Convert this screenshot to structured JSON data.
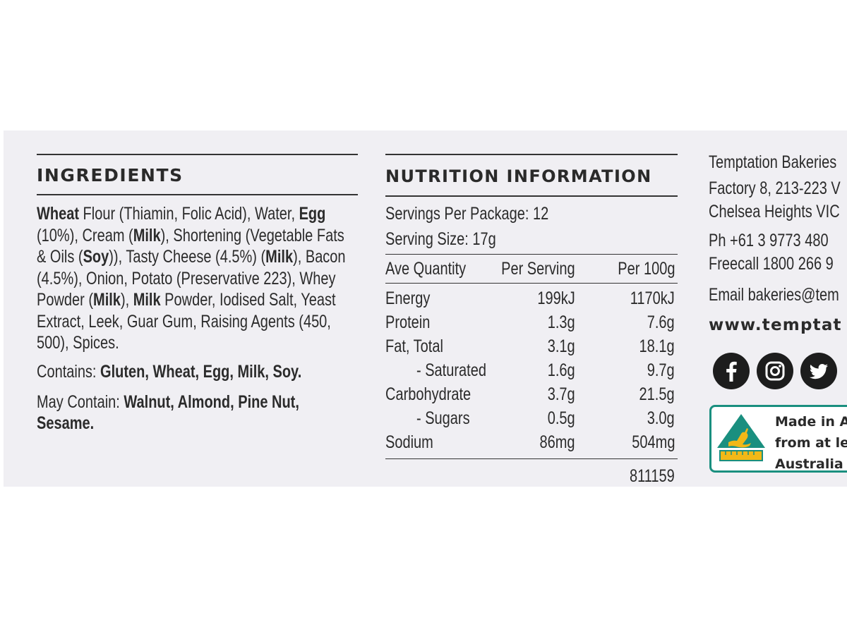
{
  "ingredients": {
    "heading": "INGREDIENTS",
    "lines": [
      [
        {
          "t": "Wheat",
          "b": true
        },
        {
          "t": " Flour (Thiamin, Folic Acid), Water, "
        },
        {
          "t": "Egg",
          "b": true
        }
      ],
      [
        {
          "t": "(10%), Cream ("
        },
        {
          "t": "Milk",
          "b": true
        },
        {
          "t": "), Shortening (Vegetable Fats"
        }
      ],
      [
        {
          "t": "& Oils ("
        },
        {
          "t": "Soy",
          "b": true
        },
        {
          "t": ")), Tasty Cheese (4.5%) ("
        },
        {
          "t": "Milk",
          "b": true
        },
        {
          "t": "), Bacon"
        }
      ],
      [
        {
          "t": "(4.5%), Onion, Potato (Preservative 223), Whey"
        }
      ],
      [
        {
          "t": "Powder ("
        },
        {
          "t": "Milk",
          "b": true
        },
        {
          "t": "), "
        },
        {
          "t": "Milk",
          "b": true
        },
        {
          "t": " Powder, Iodised Salt, Yeast"
        }
      ],
      [
        {
          "t": "Extract, Leek, Guar Gum, Raising Agents (450,"
        }
      ],
      [
        {
          "t": "500), Spices."
        }
      ]
    ],
    "contains": [
      {
        "t": "Contains: "
      },
      {
        "t": "Gluten, Wheat, Egg, Milk, Soy.",
        "b": true
      }
    ],
    "may_contain": [
      [
        {
          "t": "May Contain: "
        },
        {
          "t": "Walnut, Almond, Pine Nut,",
          "b": true
        }
      ],
      [
        {
          "t": "Sesame.",
          "b": true
        }
      ]
    ]
  },
  "nutrition": {
    "heading": "NUTRITION INFORMATION",
    "servings_per_package": "Servings Per Package: 12",
    "serving_size": "Serving Size: 17g",
    "columns": [
      "Ave Quantity",
      "Per Serving",
      "Per 100g"
    ],
    "rows": [
      {
        "name": "Energy",
        "per_serving": "199kJ",
        "per_100g": "1170kJ"
      },
      {
        "name": "Protein",
        "per_serving": "1.3g",
        "per_100g": "7.6g"
      },
      {
        "name": "Fat, Total",
        "per_serving": "3.1g",
        "per_100g": "18.1g"
      },
      {
        "name": "- Saturated",
        "per_serving": "1.6g",
        "per_100g": "9.7g",
        "indent": true
      },
      {
        "name": "Carbohydrate",
        "per_serving": "3.7g",
        "per_100g": "21.5g"
      },
      {
        "name": "- Sugars",
        "per_serving": "0.5g",
        "per_100g": "3.0g",
        "indent": true
      },
      {
        "name": "Sodium",
        "per_serving": "86mg",
        "per_100g": "504mg"
      }
    ],
    "code": "811159"
  },
  "company": {
    "name": "Temptation Bakeries",
    "address_1": "Factory 8, 213-223 V",
    "address_2": "Chelsea Heights VIC",
    "phone": "Ph +61 3 9773 480",
    "freecall": "Freecall 1800 266 9",
    "email": "Email bakeries@tem",
    "website": "www.temptat",
    "social_icons": [
      "facebook-icon",
      "instagram-icon",
      "twitter-icon"
    ],
    "made_in": [
      "Made in A",
      "from at le",
      "Australia"
    ]
  },
  "colors": {
    "background": "#f0eff3",
    "text": "#2b2b2b",
    "made_in_border": "#1a8f7f",
    "logo_green": "#1a8f7f",
    "logo_gold": "#f2b817"
  }
}
